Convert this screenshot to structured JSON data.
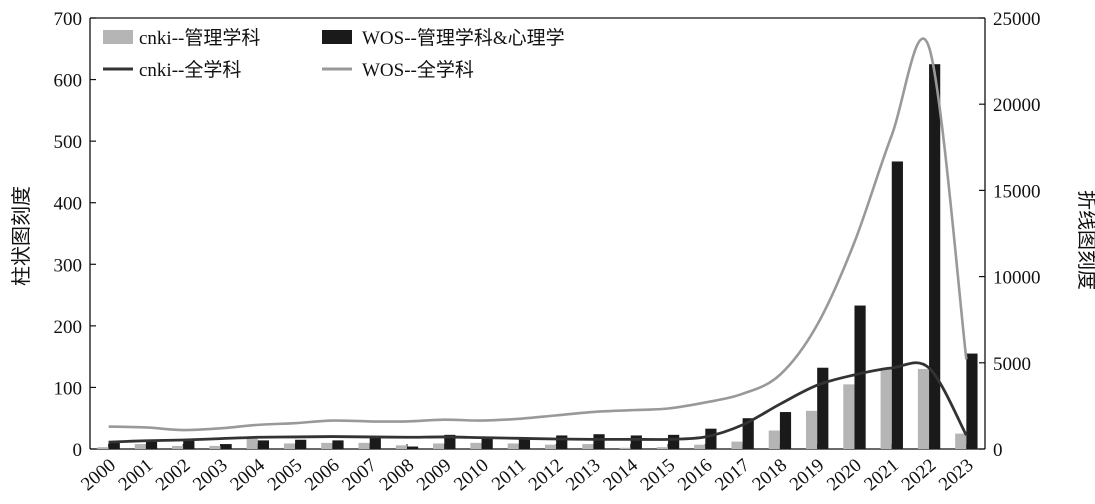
{
  "chart_data": {
    "type": "bar",
    "categories": [
      "2000",
      "2001",
      "2002",
      "2003",
      "2004",
      "2005",
      "2006",
      "2007",
      "2008",
      "2009",
      "2010",
      "2011",
      "2012",
      "2013",
      "2014",
      "2015",
      "2016",
      "2017",
      "2018",
      "2019",
      "2020",
      "2021",
      "2022",
      "2023"
    ],
    "series": [
      {
        "name": "cnki--管理学科",
        "kind": "bar",
        "axis": "left",
        "color": "#b5b5b5",
        "values": [
          3,
          8,
          5,
          5,
          17,
          9,
          10,
          10,
          6,
          9,
          10,
          9,
          7,
          8,
          2,
          3,
          7,
          12,
          30,
          62,
          105,
          130,
          130,
          25
        ]
      },
      {
        "name": "WOS--管理学科&心理学",
        "kind": "bar",
        "axis": "left",
        "color": "#1a1a1a",
        "values": [
          12,
          14,
          13,
          8,
          14,
          15,
          14,
          18,
          4,
          23,
          18,
          18,
          22,
          24,
          22,
          23,
          33,
          50,
          60,
          132,
          233,
          467,
          625,
          155
        ]
      },
      {
        "name": "cnki--全学科",
        "kind": "line",
        "axis": "right",
        "color": "#333333",
        "values": [
          400,
          480,
          520,
          600,
          680,
          700,
          720,
          700,
          680,
          700,
          660,
          620,
          580,
          560,
          560,
          560,
          700,
          1400,
          2600,
          3700,
          4300,
          4700,
          4700,
          800
        ]
      },
      {
        "name": "WOS--全学科",
        "kind": "line",
        "axis": "right",
        "color": "#999999",
        "values": [
          1300,
          1250,
          1100,
          1200,
          1400,
          1500,
          1650,
          1600,
          1600,
          1700,
          1650,
          1750,
          1950,
          2150,
          2250,
          2350,
          2700,
          3200,
          4300,
          7200,
          12000,
          18200,
          23300,
          5200
        ]
      }
    ],
    "ylabel": "柱状图刻度",
    "y2label": "折线图刻度",
    "ylim": [
      0,
      700
    ],
    "y2lim": [
      0,
      25000
    ],
    "yticks": [
      "0",
      "100",
      "200",
      "300",
      "400",
      "500",
      "600",
      "700"
    ],
    "y2ticks": [
      "0",
      "5000",
      "10000",
      "15000",
      "20000",
      "25000"
    ],
    "grid": false,
    "legend_position": "top-left"
  }
}
